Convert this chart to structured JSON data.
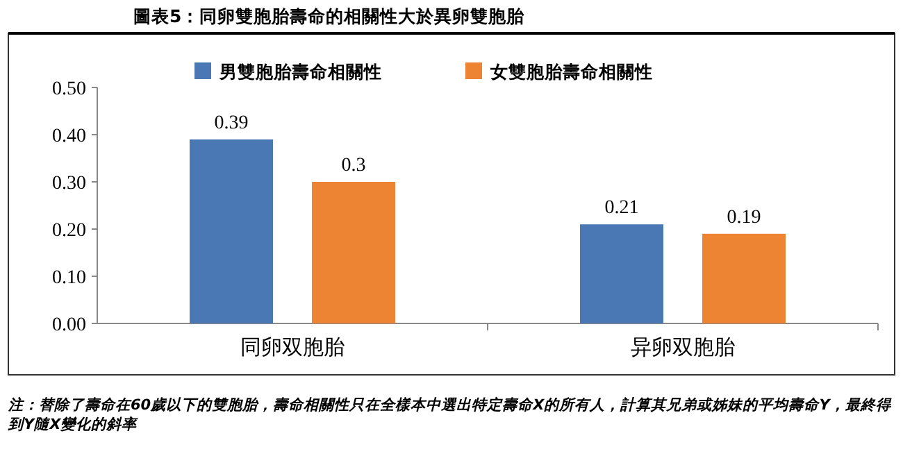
{
  "chart_data": {
    "type": "bar",
    "title": "圖表5：同卵雙胞胎壽命的相關性大於異卵雙胞胎",
    "categories": [
      "同卵双胞胎",
      "异卵双胞胎"
    ],
    "series": [
      {
        "name": "男雙胞胎壽命相關性",
        "color": "#4a78b5",
        "values": [
          0.39,
          0.21
        ]
      },
      {
        "name": "女雙胞胎壽命相關性",
        "color": "#ec8434",
        "values": [
          0.3,
          0.19
        ]
      }
    ],
    "ylim": [
      0,
      0.5
    ],
    "yticks": [
      {
        "value": 0,
        "label": "0.00"
      },
      {
        "value": 0.1,
        "label": "0.10"
      },
      {
        "value": 0.2,
        "label": "0.20"
      },
      {
        "value": 0.3,
        "label": "0.30"
      },
      {
        "value": 0.4,
        "label": "0.40"
      },
      {
        "value": 0.5,
        "label": "0.50"
      }
    ],
    "data_labels": true,
    "legend": "top",
    "annotations": [
      "注：替除了壽命在60歲以下的雙胞胎，壽命相關性只在全樣本中選出特定壽命X的所有人，計算其兄弟或姊妹的平均壽命Y，最終得到Y隨X變化的斜率"
    ]
  }
}
